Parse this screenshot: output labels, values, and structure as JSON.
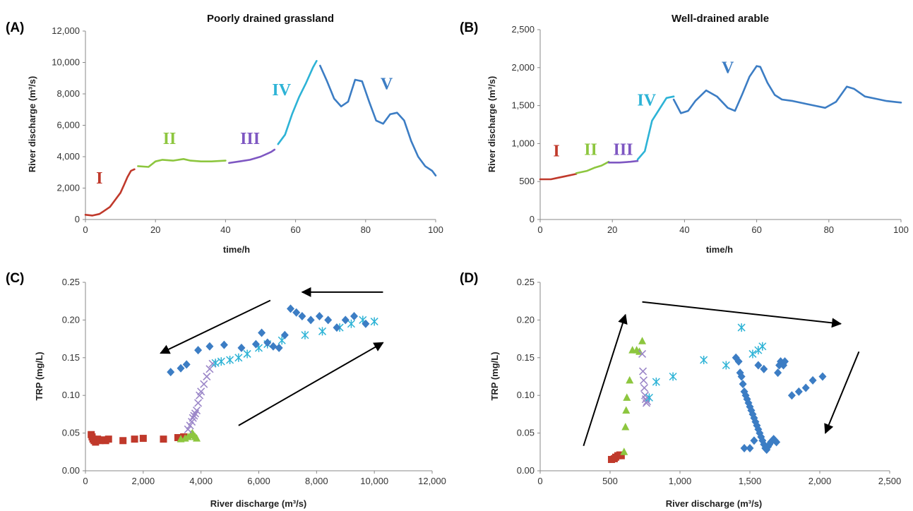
{
  "chart_data": [
    {
      "panel": "(A)",
      "type": "line",
      "title": "Poorly drained grassland",
      "xlabel": "time/h",
      "ylabel": "River discharge (m³/s)",
      "xlim": [
        0,
        100
      ],
      "ylim": [
        0,
        12000
      ],
      "xticks": [
        0,
        20,
        40,
        60,
        80,
        100
      ],
      "yticks": [
        0,
        2000,
        4000,
        6000,
        8000,
        10000,
        12000
      ],
      "xtick_labels": [
        "0",
        "20",
        "40",
        "60",
        "80",
        "100"
      ],
      "ytick_labels": [
        "0",
        "2,000",
        "4,000",
        "6,000",
        "8,000",
        "10,000",
        "12,000"
      ],
      "grid": false,
      "series": [
        {
          "name": "I",
          "color": "#c0392b",
          "label_at": [
            4,
            2300
          ],
          "x": [
            0,
            2,
            4,
            5,
            7,
            8,
            9,
            10,
            11,
            12,
            13,
            14
          ],
          "y": [
            300,
            250,
            350,
            500,
            800,
            1100,
            1400,
            1700,
            2200,
            2700,
            3100,
            3200
          ]
        },
        {
          "name": "II",
          "color": "#8dc63f",
          "label_at": [
            24,
            4800
          ],
          "x": [
            15,
            18,
            20,
            22,
            25,
            28,
            30,
            33,
            36,
            40
          ],
          "y": [
            3400,
            3350,
            3700,
            3800,
            3750,
            3850,
            3750,
            3700,
            3700,
            3750
          ]
        },
        {
          "name": "III",
          "color": "#7e57c2",
          "label_at": [
            47,
            4800
          ],
          "x": [
            41,
            44,
            47,
            50,
            53,
            54
          ],
          "y": [
            3600,
            3700,
            3800,
            4000,
            4300,
            4450
          ]
        },
        {
          "name": "IV",
          "color": "#2db3d6",
          "label_at": [
            56,
            7900
          ],
          "x": [
            55,
            57,
            59,
            61,
            63,
            65,
            66
          ],
          "y": [
            4800,
            5400,
            6700,
            7800,
            8700,
            9700,
            10100
          ]
        },
        {
          "name": "V",
          "color": "#3c7dc4",
          "label_at": [
            86,
            8300
          ],
          "x": [
            67,
            69,
            71,
            73,
            75,
            77,
            79,
            81,
            83,
            85,
            87,
            89,
            91,
            93,
            95,
            97,
            99,
            100
          ],
          "y": [
            9800,
            8800,
            7700,
            7200,
            7500,
            8900,
            8800,
            7500,
            6300,
            6100,
            6700,
            6800,
            6300,
            5000,
            4000,
            3400,
            3100,
            2800
          ]
        }
      ]
    },
    {
      "panel": "(B)",
      "type": "line",
      "title": "Well-drained arable",
      "xlabel": "time/h",
      "ylabel": "River discharge (m³/s)",
      "xlim": [
        0,
        100
      ],
      "ylim": [
        0,
        2500
      ],
      "xticks": [
        0,
        20,
        40,
        60,
        80,
        100
      ],
      "yticks": [
        0,
        500,
        1000,
        1500,
        2000,
        2500
      ],
      "xtick_labels": [
        "0",
        "20",
        "40",
        "60",
        "80",
        "100"
      ],
      "ytick_labels": [
        "0",
        "500",
        "1,000",
        "1,500",
        "2,000",
        "2,500"
      ],
      "grid": false,
      "series": [
        {
          "name": "I",
          "color": "#c0392b",
          "label_at": [
            4.5,
            830
          ],
          "x": [
            0,
            3,
            5,
            7,
            9,
            10
          ],
          "y": [
            530,
            530,
            550,
            570,
            590,
            600
          ]
        },
        {
          "name": "II",
          "color": "#8dc63f",
          "label_at": [
            14,
            850
          ],
          "x": [
            10,
            13,
            15,
            17,
            19
          ],
          "y": [
            610,
            640,
            680,
            710,
            760
          ]
        },
        {
          "name": "III",
          "color": "#7e57c2",
          "label_at": [
            23,
            850
          ],
          "x": [
            19,
            22,
            25,
            27
          ],
          "y": [
            750,
            750,
            760,
            770
          ]
        },
        {
          "name": "IV",
          "color": "#2db3d6",
          "label_at": [
            29.5,
            1500
          ],
          "x": [
            27,
            29,
            31,
            33,
            35,
            37
          ],
          "y": [
            790,
            900,
            1300,
            1450,
            1600,
            1620
          ]
        },
        {
          "name": "V",
          "color": "#3c7dc4",
          "label_at": [
            52,
            1930
          ],
          "x": [
            37,
            39,
            41,
            43,
            46,
            49,
            52,
            54,
            56,
            58,
            60,
            61,
            63,
            65,
            67,
            70,
            73,
            76,
            79,
            82,
            85,
            87,
            90,
            93,
            96,
            100
          ],
          "y": [
            1580,
            1400,
            1430,
            1560,
            1700,
            1620,
            1470,
            1430,
            1650,
            1880,
            2020,
            2010,
            1800,
            1640,
            1580,
            1560,
            1530,
            1500,
            1470,
            1550,
            1750,
            1720,
            1620,
            1590,
            1560,
            1540
          ]
        }
      ]
    },
    {
      "panel": "(C)",
      "type": "scatter",
      "xlabel": "River discharge (m³/s)",
      "ylabel": "TRP (mg/L)",
      "xlim": [
        0,
        12000
      ],
      "ylim": [
        0,
        0.25
      ],
      "xticks": [
        0,
        2000,
        4000,
        6000,
        8000,
        10000,
        12000
      ],
      "yticks": [
        0,
        0.05,
        0.1,
        0.15,
        0.2,
        0.25
      ],
      "xtick_labels": [
        "0",
        "2,000",
        "4,000",
        "6,000",
        "8,000",
        "10,000",
        "12,000"
      ],
      "ytick_labels": [
        "0.00",
        "0.05",
        "0.10",
        "0.15",
        "0.20",
        "0.25"
      ],
      "grid": false,
      "arrows": [
        [
          10300,
          0.237,
          7500,
          0.237
        ],
        [
          6400,
          0.226,
          2600,
          0.156
        ],
        [
          5300,
          0.06,
          10300,
          0.17
        ]
      ],
      "series": [
        {
          "name": "I",
          "marker": "square",
          "color": "#c0392b",
          "x": [
            200,
            230,
            260,
            300,
            350,
            420,
            500,
            600,
            700,
            800,
            1300,
            1700,
            2000,
            2700,
            3200,
            3400
          ],
          "y": [
            0.048,
            0.045,
            0.042,
            0.04,
            0.038,
            0.042,
            0.04,
            0.041,
            0.04,
            0.042,
            0.04,
            0.042,
            0.043,
            0.042,
            0.044,
            0.045
          ]
        },
        {
          "name": "II",
          "marker": "triangle",
          "color": "#8dc63f",
          "x": [
            3300,
            3450,
            3550,
            3650,
            3700,
            3750,
            3800,
            3850
          ],
          "y": [
            0.042,
            0.043,
            0.045,
            0.048,
            0.05,
            0.047,
            0.045,
            0.043
          ]
        },
        {
          "name": "III",
          "marker": "x",
          "color": "#9b86c8",
          "x": [
            3550,
            3620,
            3680,
            3720,
            3760,
            3800,
            3850,
            3900,
            3950,
            4000,
            4100,
            4200,
            4300,
            4400
          ],
          "y": [
            0.055,
            0.06,
            0.065,
            0.07,
            0.073,
            0.076,
            0.08,
            0.09,
            0.1,
            0.105,
            0.115,
            0.125,
            0.135,
            0.142
          ]
        },
        {
          "name": "IV",
          "marker": "asterisk",
          "color": "#2db3d6",
          "x": [
            4500,
            4700,
            5000,
            5300,
            5600,
            6000,
            6300,
            6800,
            7600,
            8200,
            8800,
            9200,
            9600,
            10000
          ],
          "y": [
            0.143,
            0.145,
            0.147,
            0.15,
            0.155,
            0.163,
            0.168,
            0.173,
            0.18,
            0.185,
            0.19,
            0.195,
            0.2,
            0.198
          ]
        },
        {
          "name": "V",
          "marker": "diamond",
          "color": "#3c7dc4",
          "x": [
            2950,
            3300,
            3500,
            3900,
            4300,
            4800,
            5400,
            5900,
            6100,
            6300,
            6500,
            6700,
            6900,
            7100,
            7300,
            7500,
            7800,
            8100,
            8400,
            8700,
            9000,
            9300,
            9700
          ],
          "y": [
            0.131,
            0.136,
            0.141,
            0.16,
            0.165,
            0.167,
            0.163,
            0.168,
            0.183,
            0.17,
            0.165,
            0.163,
            0.18,
            0.215,
            0.21,
            0.205,
            0.2,
            0.205,
            0.2,
            0.19,
            0.2,
            0.205,
            0.195
          ]
        }
      ]
    },
    {
      "panel": "(D)",
      "type": "scatter",
      "xlabel": "River discharge (m³/s)",
      "ylabel": "TRP (mg/L)",
      "xlim": [
        0,
        2500
      ],
      "ylim": [
        0,
        0.25
      ],
      "xticks": [
        0,
        500,
        1000,
        1500,
        2000,
        2500
      ],
      "yticks": [
        0,
        0.05,
        0.1,
        0.15,
        0.2,
        0.25
      ],
      "xtick_labels": [
        "0",
        "500",
        "1,000",
        "1,500",
        "2,000",
        "2,500"
      ],
      "ytick_labels": [
        "0.00",
        "0.05",
        "0.10",
        "0.15",
        "0.20",
        "0.25"
      ],
      "grid": false,
      "arrows": [
        [
          310,
          0.033,
          610,
          0.207
        ],
        [
          730,
          0.224,
          2150,
          0.195
        ],
        [
          2280,
          0.158,
          2040,
          0.05
        ]
      ],
      "series": [
        {
          "name": "I",
          "marker": "square",
          "color": "#c0392b",
          "x": [
            510,
            530,
            540,
            555,
            570,
            580
          ],
          "y": [
            0.015,
            0.016,
            0.018,
            0.02,
            0.021,
            0.02
          ]
        },
        {
          "name": "II",
          "marker": "triangle",
          "color": "#8dc63f",
          "x": [
            600,
            610,
            615,
            620,
            640,
            660,
            690,
            710,
            730
          ],
          "y": [
            0.025,
            0.058,
            0.08,
            0.097,
            0.12,
            0.16,
            0.16,
            0.158,
            0.172
          ]
        },
        {
          "name": "III",
          "marker": "x",
          "color": "#9b86c8",
          "x": [
            730,
            735,
            740,
            745,
            750,
            755,
            760,
            765
          ],
          "y": [
            0.155,
            0.132,
            0.12,
            0.11,
            0.1,
            0.095,
            0.09,
            0.092
          ]
        },
        {
          "name": "IV",
          "marker": "asterisk",
          "color": "#2db3d6",
          "x": [
            780,
            830,
            950,
            1170,
            1330,
            1440,
            1520,
            1560,
            1590
          ],
          "y": [
            0.097,
            0.118,
            0.125,
            0.147,
            0.14,
            0.19,
            0.155,
            0.16,
            0.165
          ]
        },
        {
          "name": "V",
          "marker": "diamond",
          "color": "#3c7dc4",
          "x": [
            1400,
            1420,
            1430,
            1440,
            1450,
            1460,
            1470,
            1480,
            1490,
            1500,
            1510,
            1520,
            1530,
            1540,
            1550,
            1560,
            1570,
            1580,
            1590,
            1600,
            1610,
            1620,
            1630,
            1640,
            1650,
            1660,
            1670,
            1680,
            1690,
            1700,
            1710,
            1720,
            1740,
            1750,
            1800,
            1850,
            1900,
            1950,
            2020,
            1460,
            1500,
            1530,
            1560,
            1600
          ],
          "y": [
            0.15,
            0.145,
            0.13,
            0.125,
            0.115,
            0.105,
            0.1,
            0.095,
            0.09,
            0.085,
            0.08,
            0.075,
            0.07,
            0.065,
            0.06,
            0.055,
            0.05,
            0.045,
            0.04,
            0.035,
            0.03,
            0.028,
            0.032,
            0.035,
            0.038,
            0.04,
            0.042,
            0.04,
            0.038,
            0.13,
            0.14,
            0.145,
            0.14,
            0.145,
            0.1,
            0.105,
            0.11,
            0.12,
            0.125,
            0.03,
            0.03,
            0.04,
            0.14,
            0.135
          ]
        }
      ]
    }
  ]
}
